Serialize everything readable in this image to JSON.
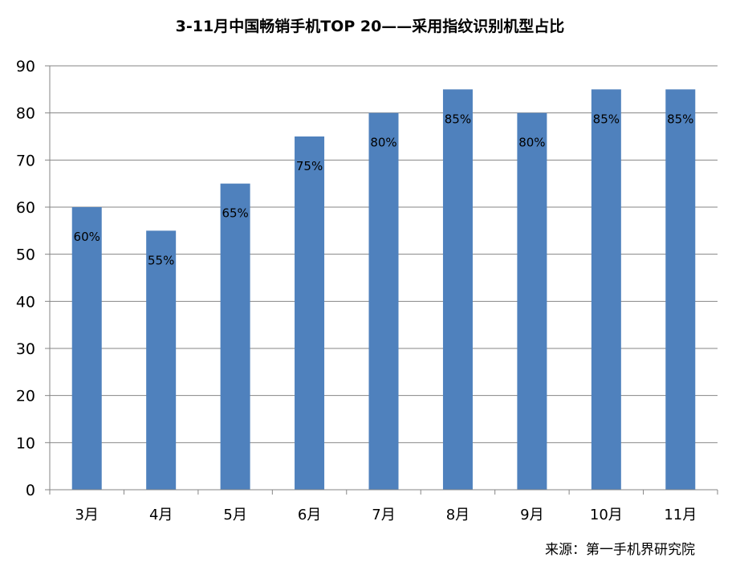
{
  "chart_data": {
    "type": "bar",
    "title": "3-11月中国畅销手机TOP 20——采用指纹识别机型占比",
    "categories": [
      "3月",
      "4月",
      "5月",
      "6月",
      "7月",
      "8月",
      "9月",
      "10月",
      "11月"
    ],
    "series": [
      {
        "values": [
          60,
          55,
          65,
          75,
          80,
          85,
          80,
          85,
          85
        ]
      }
    ],
    "data_labels": [
      "60%",
      "55%",
      "65%",
      "75%",
      "80%",
      "85%",
      "80%",
      "85%",
      "85%"
    ],
    "ylim": [
      0,
      90
    ],
    "yticks": [
      0,
      10,
      20,
      30,
      40,
      50,
      60,
      70,
      80,
      90
    ],
    "grid": true,
    "legend": "none",
    "bar_color": "#4f81bd",
    "source": "来源：第一手机界研究院"
  }
}
